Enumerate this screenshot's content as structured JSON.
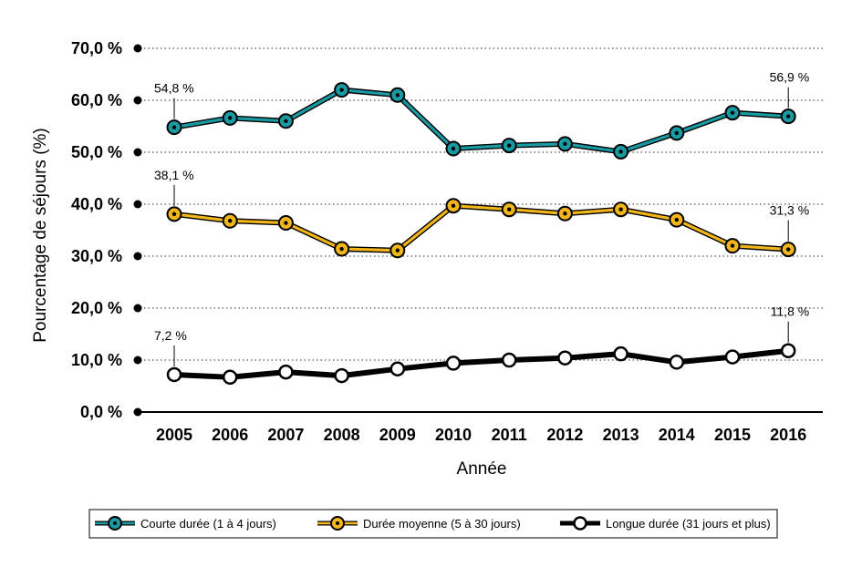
{
  "chart_data": {
    "type": "line",
    "title": "",
    "xlabel": "Année",
    "ylabel": "Pourcentage de séjours (%)",
    "ylim": [
      0,
      70
    ],
    "y_ticks": [
      "0,0 %",
      "10,0 %",
      "20,0 %",
      "30,0 %",
      "40,0 %",
      "50,0 %",
      "60,0 %",
      "70,0 %"
    ],
    "categories": [
      "2005",
      "2006",
      "2007",
      "2008",
      "2009",
      "2010",
      "2011",
      "2012",
      "2013",
      "2014",
      "2015",
      "2016"
    ],
    "series": [
      {
        "name": "Courte durée (1 à 4 jours)",
        "color": "#1a9ba3",
        "values": [
          54.8,
          56.6,
          56.0,
          62.0,
          61.0,
          50.7,
          51.3,
          51.6,
          50.1,
          53.7,
          57.6,
          56.9
        ],
        "labels": [
          {
            "index": 0,
            "text": "54,8 %"
          },
          {
            "index": 11,
            "text": "56,9 %"
          }
        ]
      },
      {
        "name": "Durée moyenne (5 à 30 jours)",
        "color": "#f2b619",
        "values": [
          38.1,
          36.8,
          36.4,
          31.4,
          31.1,
          39.7,
          39.0,
          38.2,
          39.0,
          37.0,
          32.0,
          31.3
        ],
        "labels": [
          {
            "index": 0,
            "text": "38,1 %"
          },
          {
            "index": 11,
            "text": "31,3 %"
          }
        ]
      },
      {
        "name": "Longue durée (31 jours et plus)",
        "color": "#000000",
        "values": [
          7.2,
          6.7,
          7.7,
          7.0,
          8.3,
          9.4,
          10.0,
          10.4,
          11.2,
          9.6,
          10.6,
          11.8
        ],
        "labels": [
          {
            "index": 0,
            "text": "7,2 %"
          },
          {
            "index": 11,
            "text": "11,8 %"
          }
        ]
      }
    ],
    "grid": "horizontal dotted",
    "legend": "bottom"
  }
}
